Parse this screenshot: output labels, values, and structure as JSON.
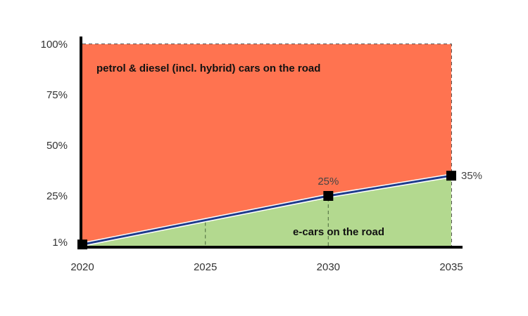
{
  "chart_data": {
    "type": "area",
    "x": [
      2020,
      2025,
      2030,
      2035
    ],
    "series": [
      {
        "name": "e-cars on the road",
        "values": [
          1,
          13,
          25,
          35
        ],
        "color": "#b3d98f"
      },
      {
        "name": "petrol & diesel (incl. hybrid) cars on the road",
        "values": [
          99,
          87,
          75,
          65
        ],
        "color": "#ff7350"
      }
    ],
    "marked_points": [
      {
        "x": 2020,
        "y": 1,
        "label": ""
      },
      {
        "x": 2030,
        "y": 25,
        "label": "25%"
      },
      {
        "x": 2035,
        "y": 35,
        "label": "35%"
      }
    ],
    "x_ticks": [
      "2020",
      "2025",
      "2030",
      "2035"
    ],
    "y_ticks": [
      {
        "value": 1,
        "label": "1%"
      },
      {
        "value": 25,
        "label": "25%"
      },
      {
        "value": 50,
        "label": "50%"
      },
      {
        "value": 75,
        "label": "75%"
      },
      {
        "value": 100,
        "label": "100%"
      }
    ],
    "xlim": [
      2020,
      2035
    ],
    "ylim": [
      0,
      100
    ],
    "line_color": "#1f3c8c",
    "grid": false
  }
}
